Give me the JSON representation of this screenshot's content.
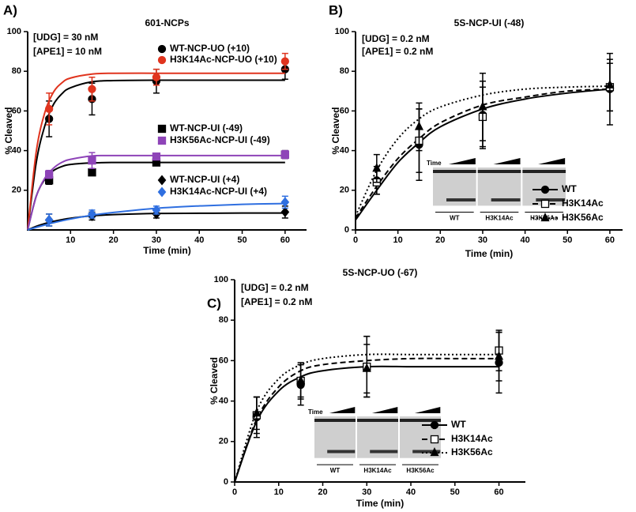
{
  "chart_data": [
    {
      "type": "scatter",
      "panel_label": "A)",
      "title": "601-NCPs",
      "x_label": "Time (min)",
      "y_label": "% Cleaved",
      "annotations": [
        "[UDG] = 30 nM",
        "[APE1] = 10 nM"
      ],
      "xlim": [
        0,
        65
      ],
      "ylim": [
        0,
        100
      ],
      "xticks": [
        10,
        20,
        30,
        40,
        50,
        60
      ],
      "yticks": [
        20,
        40,
        60,
        80,
        100
      ],
      "x": [
        5,
        15,
        30,
        60
      ],
      "curve_x": [
        0,
        2,
        4,
        6,
        8,
        10,
        15,
        20,
        30,
        40,
        50,
        60
      ],
      "series": [
        {
          "name": "WT-NCP-UO (+10)",
          "color": "#000000",
          "marker": "circle",
          "line_style": "solid",
          "values": [
            56,
            66,
            75,
            81
          ],
          "errors": [
            9,
            8,
            6,
            5
          ],
          "curve": [
            0,
            34,
            52.5,
            63.2,
            68.7,
            71.7,
            74.7,
            75.3,
            75.5,
            75.5,
            75.5,
            75.5
          ]
        },
        {
          "name": "H3K14Ac-NCP-UO (+10)",
          "color": "#e0341e",
          "marker": "circle",
          "line_style": "solid",
          "values": [
            61,
            71,
            77,
            85
          ],
          "errors": [
            8,
            6,
            4,
            4
          ],
          "curve": [
            0,
            39.4,
            59.2,
            69.4,
            74.2,
            76.6,
            78.6,
            79,
            79,
            79,
            79,
            79
          ]
        },
        {
          "name": "WT-NCP-UI (-49)",
          "color": "#000000",
          "marker": "square",
          "line_style": "solid",
          "values": [
            25,
            29,
            34,
            38
          ],
          "errors": [
            2,
            1,
            1,
            2
          ],
          "curve": [
            0,
            17,
            25.5,
            29.9,
            32,
            33,
            33.8,
            34,
            34,
            34,
            34,
            34
          ]
        },
        {
          "name": "H3K56Ac-NCP-UI (-49)",
          "color": "#8e44b8",
          "marker": "square",
          "line_style": "solid",
          "values": [
            28,
            35,
            37,
            38
          ],
          "errors": [
            2,
            4,
            1,
            2
          ],
          "curve": [
            0,
            16.9,
            26.1,
            31.1,
            34.1,
            35.6,
            37.3,
            37.5,
            37.5,
            37.5,
            37.5,
            37.5
          ]
        },
        {
          "name": "WT-NCP-UI (+4)",
          "color": "#000000",
          "marker": "diamond",
          "line_style": "solid",
          "values": [
            5,
            7,
            8,
            9
          ],
          "errors": [
            3,
            2,
            2,
            3
          ],
          "curve": [
            0,
            1.8,
            3.2,
            4.3,
            5.2,
            5.9,
            7.1,
            7.7,
            8.3,
            8.4,
            8.5,
            8.5
          ]
        },
        {
          "name": "H3K14Ac-NCP-UI (+4)",
          "color": "#2f6fe0",
          "marker": "diamond",
          "line_style": "solid",
          "values": [
            5,
            8,
            10,
            14
          ],
          "errors": [
            3,
            2,
            2,
            3
          ],
          "curve": [
            0,
            1.3,
            2.5,
            3.6,
            4.6,
            5.5,
            7.4,
            8.8,
            10.9,
            12.1,
            12.9,
            13.3
          ]
        }
      ]
    },
    {
      "type": "scatter",
      "panel_label": "B)",
      "title": "5S-NCP-UI (-48)",
      "x_label": "Time (min)",
      "y_label": "% Cleaved",
      "annotations": [
        "[UDG] = 0.2 nM",
        "[APE1] = 0.2 nM"
      ],
      "xlim": [
        0,
        63
      ],
      "ylim": [
        0,
        100
      ],
      "xticks": [
        0,
        10,
        20,
        30,
        40,
        50,
        60
      ],
      "yticks": [
        0,
        20,
        40,
        60,
        80,
        100
      ],
      "x": [
        5,
        15,
        30,
        60
      ],
      "curve_x": [
        0,
        5,
        10,
        15,
        20,
        30,
        40,
        50,
        60
      ],
      "inset": {
        "label": "Time",
        "lanes": [
          "WT",
          "H3K14Ac",
          "H3K56Ac"
        ]
      },
      "series": [
        {
          "name": "WT",
          "color": "#000000",
          "marker": "circle",
          "line_style": "solid",
          "values": [
            25,
            43,
            58,
            71
          ],
          "errors": [
            7,
            18,
            17,
            18
          ],
          "curve": [
            5,
            20,
            34,
            44,
            52,
            61,
            66,
            69,
            71
          ]
        },
        {
          "name": "H3K14Ac",
          "color": "#000000",
          "marker": "square",
          "marker_fill": "#ffffff",
          "line_style": "dashed",
          "values": [
            24,
            45,
            57,
            72
          ],
          "errors": [
            6,
            16,
            15,
            12
          ],
          "curve": [
            6,
            22,
            36,
            46,
            54,
            63,
            67,
            70,
            71
          ]
        },
        {
          "name": "H3K56Ac",
          "color": "#000000",
          "marker": "triangle",
          "line_style": "dotted",
          "values": [
            31,
            52,
            62,
            73
          ],
          "errors": [
            7,
            12,
            17,
            13
          ],
          "curve": [
            7,
            30,
            46,
            56,
            62,
            68,
            71,
            72,
            72.5
          ]
        }
      ]
    },
    {
      "type": "scatter",
      "panel_label": "C)",
      "title": "5S-NCP-UO (-67)",
      "x_label": "Time (min)",
      "y_label": "% Cleaved",
      "annotations": [
        "[UDG] = 0.2 nM",
        "[APE1] = 0.2 nM"
      ],
      "xlim": [
        0,
        66
      ],
      "ylim": [
        0,
        100
      ],
      "xticks": [
        0,
        10,
        20,
        30,
        40,
        50,
        60
      ],
      "yticks": [
        0,
        20,
        40,
        60,
        80,
        100
      ],
      "x": [
        5,
        15,
        30,
        60
      ],
      "curve_x": [
        0,
        5,
        10,
        15,
        20,
        30,
        40,
        50,
        60
      ],
      "inset": {
        "label": "Time",
        "lanes": [
          "WT",
          "H3K14Ac",
          "H3K56Ac"
        ]
      },
      "series": [
        {
          "name": "WT",
          "color": "#000000",
          "marker": "circle",
          "line_style": "solid",
          "values": [
            32,
            48,
            57,
            59
          ],
          "errors": [
            10,
            10,
            15,
            15
          ],
          "curve": [
            0,
            30,
            45,
            52,
            55,
            57,
            57,
            57,
            57
          ]
        },
        {
          "name": "H3K14Ac",
          "color": "#000000",
          "marker": "square",
          "marker_fill": "#ffffff",
          "line_style": "dashed",
          "values": [
            33,
            50,
            57,
            65
          ],
          "errors": [
            9,
            8,
            15,
            10
          ],
          "curve": [
            0,
            31,
            47,
            55,
            58,
            60,
            61,
            61,
            61
          ]
        },
        {
          "name": "H3K56Ac",
          "color": "#000000",
          "marker": "triangle",
          "line_style": "dotted",
          "values": [
            34,
            50,
            56,
            62
          ],
          "errors": [
            8,
            9,
            12,
            12
          ],
          "curve": [
            0,
            35,
            51,
            58,
            61,
            63,
            63,
            63,
            63
          ]
        }
      ]
    }
  ]
}
